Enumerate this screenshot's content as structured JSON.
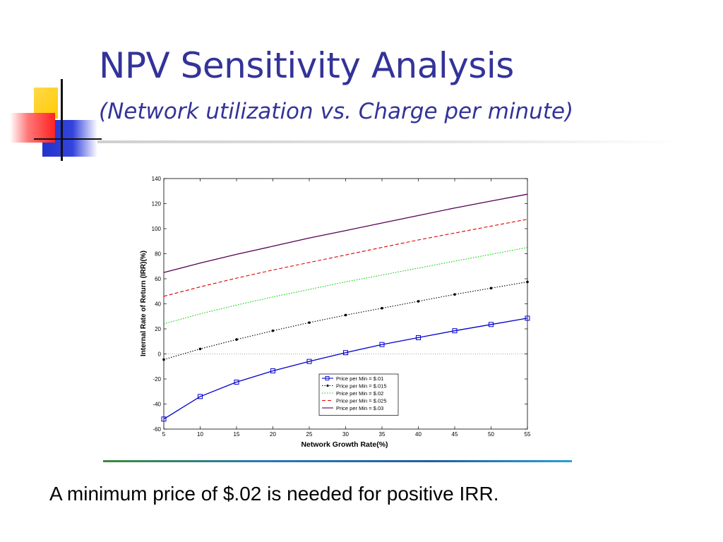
{
  "slide": {
    "title": "NPV Sensitivity Analysis",
    "subtitle": "(Network utilization vs. Charge per minute)",
    "caption": "A minimum price of $.02 is needed for positive IRR."
  },
  "colors": {
    "title": "#333399",
    "series": [
      "#0000cc",
      "#000000",
      "#00cc00",
      "#dd0000",
      "#550055"
    ]
  },
  "chart_data": {
    "type": "line",
    "title": "",
    "xlabel": "Network Growth Rate(%)",
    "ylabel": "Internal Rate of Return (IRR)(%)",
    "x": [
      5,
      10,
      15,
      20,
      25,
      30,
      35,
      40,
      45,
      50,
      55
    ],
    "xlim": [
      5,
      55
    ],
    "ylim": [
      -60,
      140
    ],
    "xticks": [
      5,
      10,
      15,
      20,
      25,
      30,
      35,
      40,
      45,
      50,
      55
    ],
    "yticks": [
      -60,
      -40,
      -20,
      0,
      20,
      40,
      60,
      80,
      100,
      120,
      140
    ],
    "grid": false,
    "zero_line": true,
    "legend_position": "lower-right",
    "series": [
      {
        "name": "Price per Min = $.01",
        "style": "solid",
        "marker": "square",
        "values": [
          -52,
          -34,
          -22.5,
          -13.5,
          -6,
          1,
          7.5,
          13,
          18.5,
          23.5,
          28.5
        ]
      },
      {
        "name": "Price per Min = $.015",
        "style": "dotted",
        "marker": "dot",
        "values": [
          -4.5,
          4,
          11.5,
          18.5,
          25,
          31,
          36.5,
          42,
          47.5,
          52.5,
          57.5
        ]
      },
      {
        "name": "Price per Min = $.02",
        "style": "dotted",
        "marker": "none",
        "values": [
          24,
          32,
          39,
          45.5,
          51.5,
          57.5,
          63,
          68.5,
          74,
          79.5,
          85
        ]
      },
      {
        "name": "Price per Min = $.025",
        "style": "dashed",
        "marker": "none",
        "values": [
          46,
          53.5,
          60.5,
          67,
          73,
          79,
          85,
          91,
          96.5,
          102,
          107.5
        ]
      },
      {
        "name": "Price per Min = $.03",
        "style": "solid",
        "marker": "none",
        "values": [
          65,
          72.5,
          79.5,
          86,
          92.5,
          98.5,
          104.5,
          110.5,
          116.5,
          122,
          127.5
        ]
      }
    ]
  }
}
